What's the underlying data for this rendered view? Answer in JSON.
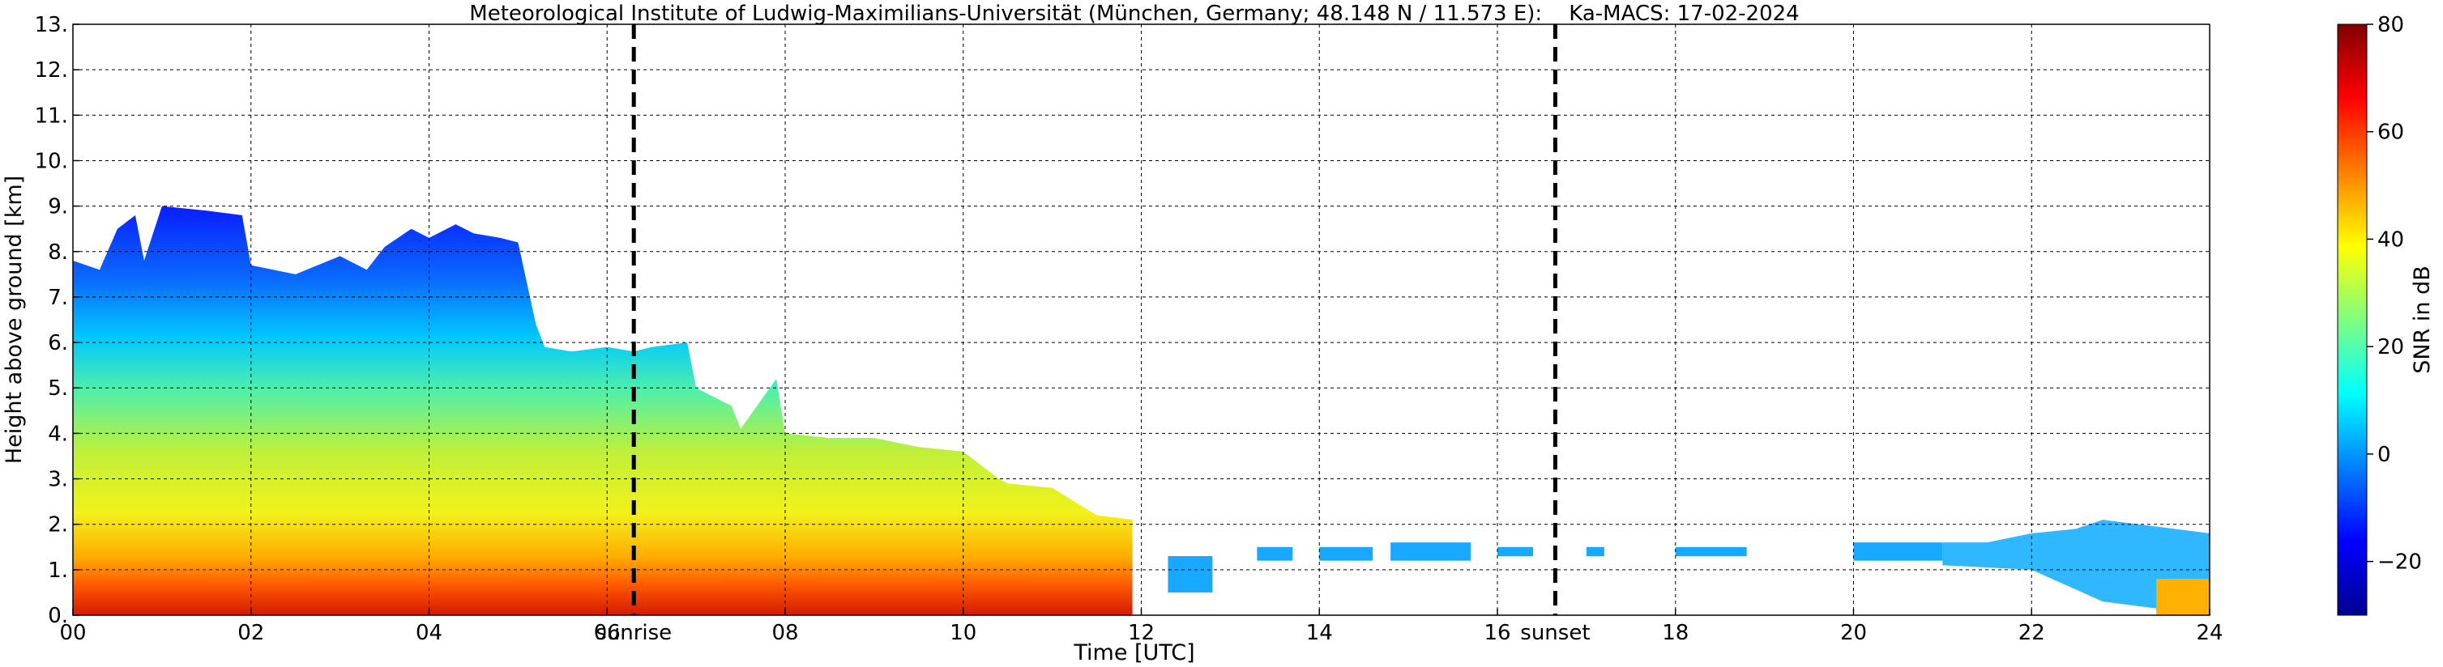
{
  "chart_data": {
    "type": "heatmap",
    "title": "Meteorological Institute of Ludwig-Maximilians-Universität (München, Germany; 48.148 N / 11.573 E):    Ka-MACS: 17-02-2024",
    "xlabel": "Time [UTC]",
    "ylabel": "Height above ground [km]",
    "xlim": [
      0,
      24
    ],
    "ylim": [
      0,
      13
    ],
    "x_ticks": [
      "00",
      "02",
      "04",
      "06",
      "08",
      "10",
      "12",
      "14",
      "16",
      "18",
      "20",
      "22",
      "24"
    ],
    "y_ticks": [
      "0.",
      "1.",
      "2.",
      "3.",
      "4.",
      "5.",
      "6.",
      "7.",
      "8.",
      "9.",
      "10.",
      "11.",
      "12.",
      "13."
    ],
    "grid": true,
    "colorbar": {
      "label": "SNR in dB",
      "range": [
        -30,
        80
      ],
      "ticks": [
        "80",
        "60",
        "40",
        "20",
        "0",
        "−20"
      ],
      "tick_values": [
        80,
        60,
        40,
        20,
        0,
        -20
      ],
      "colormap": "jet"
    },
    "annotations": [
      {
        "label": "sunrise",
        "x": 6.3
      },
      {
        "label": "sunset",
        "x": 16.65
      }
    ],
    "echo_top_km": {
      "time": [
        0.0,
        0.3,
        0.5,
        0.7,
        0.8,
        1.0,
        1.5,
        1.9,
        2.0,
        2.5,
        3.0,
        3.3,
        3.5,
        3.8,
        4.0,
        4.3,
        4.5,
        4.8,
        5.0,
        5.2,
        5.3,
        5.6,
        6.0,
        6.3,
        6.5,
        6.9,
        7.0,
        7.4,
        7.5,
        7.9,
        8.0,
        8.5,
        9.0,
        9.5,
        10.0,
        10.4,
        10.5,
        11.0,
        11.5,
        11.9
      ],
      "top": [
        7.8,
        7.6,
        8.5,
        8.8,
        7.8,
        9.0,
        8.9,
        8.8,
        7.7,
        7.5,
        7.9,
        7.6,
        8.1,
        8.5,
        8.3,
        8.6,
        8.4,
        8.3,
        8.2,
        6.4,
        5.9,
        5.8,
        5.9,
        5.8,
        5.9,
        6.0,
        5.0,
        4.6,
        4.1,
        5.2,
        4.0,
        3.9,
        3.9,
        3.7,
        3.6,
        3.0,
        2.9,
        2.8,
        2.2,
        2.1
      ]
    },
    "intermittent_layers": [
      {
        "start": 12.3,
        "end": 12.8,
        "base": 0.5,
        "top": 1.3
      },
      {
        "start": 13.3,
        "end": 13.7,
        "base": 1.2,
        "top": 1.5
      },
      {
        "start": 14.0,
        "end": 14.6,
        "base": 1.2,
        "top": 1.5
      },
      {
        "start": 14.8,
        "end": 15.7,
        "base": 1.2,
        "top": 1.6
      },
      {
        "start": 16.0,
        "end": 16.4,
        "base": 1.3,
        "top": 1.5
      },
      {
        "start": 17.0,
        "end": 17.2,
        "base": 1.3,
        "top": 1.5
      },
      {
        "start": 18.0,
        "end": 18.8,
        "base": 1.3,
        "top": 1.5
      },
      {
        "start": 20.0,
        "end": 21.0,
        "base": 1.2,
        "top": 1.6
      }
    ],
    "late_cloud": {
      "time": [
        21.0,
        21.5,
        22.0,
        22.5,
        22.8,
        23.2,
        23.6,
        24.0
      ],
      "top": [
        1.6,
        1.6,
        1.8,
        1.9,
        2.1,
        2.0,
        1.9,
        1.8
      ]
    }
  }
}
